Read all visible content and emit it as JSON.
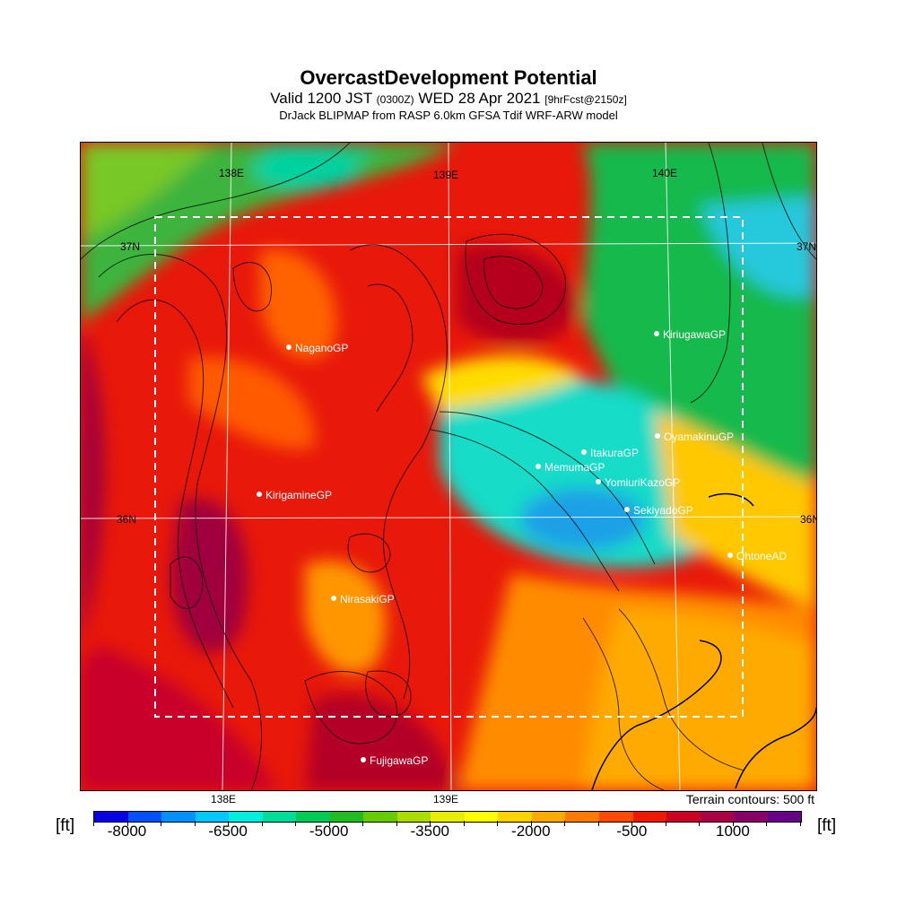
{
  "title": {
    "main": "OvercastDevelopment Potential",
    "valid_prefix": "Valid 1200 JST",
    "valid_utc": "(0300Z)",
    "valid_date": "WED 28 Apr 2021",
    "valid_fcst": "[9hrFcst@2150z]",
    "model": "DrJack BLIPMAP from RASP 6.0km GFSA Tdif WRF-ARW model"
  },
  "map": {
    "lon_labels_top": [
      "138E",
      "139E",
      "140E"
    ],
    "lon_labels_bottom": [
      "138E",
      "139E"
    ],
    "lat_labels_left": [
      "37N",
      "36N"
    ],
    "lat_labels_right": [
      "37N",
      "36N"
    ],
    "sites": [
      "NaganoGP",
      "KirigamineGP",
      "NirasakiGP",
      "FujigawaGP",
      "KiriugawaGP",
      "OyamakinuGP",
      "ItakuraGP",
      "MemumaGP",
      "YomiuriKazoGP",
      "SekiyadoGP",
      "OhtoneAD"
    ],
    "terrain_note": "Terrain contours: 500 ft"
  },
  "colorbar": {
    "unit_left": "[ft]",
    "unit_right": "[ft]",
    "labels": [
      "-8000",
      "-6500",
      "-5000",
      "-3500",
      "-2000",
      "-500",
      "1000"
    ],
    "colors": [
      "#0a00e6",
      "#0050ff",
      "#0090ff",
      "#00c8ff",
      "#00eedd",
      "#00dd99",
      "#00cc55",
      "#22bb22",
      "#66cc00",
      "#aadd00",
      "#e6ee00",
      "#ffff00",
      "#ffd200",
      "#ffaa00",
      "#ff7a00",
      "#ff4a00",
      "#ee1a00",
      "#cc0022",
      "#aa0044",
      "#880066",
      "#660088"
    ]
  }
}
